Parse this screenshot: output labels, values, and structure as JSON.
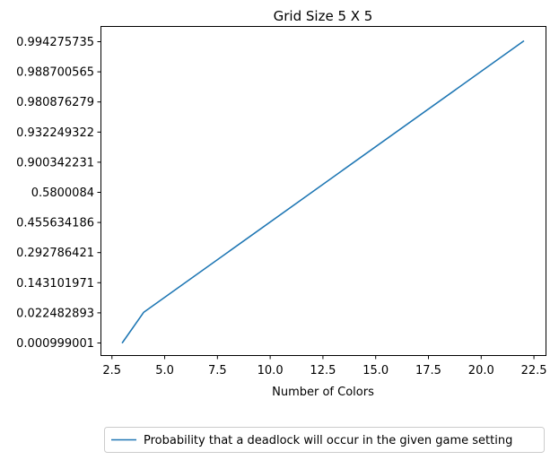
{
  "chart_data": {
    "type": "line",
    "title": "Grid Size 5 X 5",
    "xlabel": "Number of Colors",
    "ylabel": "",
    "x_ticks": [
      "2.5",
      "5.0",
      "7.5",
      "10.0",
      "12.5",
      "15.0",
      "17.5",
      "20.0",
      "22.5"
    ],
    "y_categories": [
      "0.000999001",
      "0.022482893",
      "0.143101971",
      "0.292786421",
      "0.455634186",
      "0.5800084",
      "0.900342231",
      "0.932249322",
      "0.980876279",
      "0.988700565",
      "0.994275735"
    ],
    "series": [
      {
        "name": "Probability that a deadlock will occur in the given game setting",
        "color": "#1f77b4",
        "x": [
          3,
          4,
          22
        ],
        "y": [
          "0.000999001",
          "0.022482893",
          "0.994275735"
        ]
      }
    ],
    "legend": {
      "placement": "below-right"
    },
    "grid": false
  }
}
